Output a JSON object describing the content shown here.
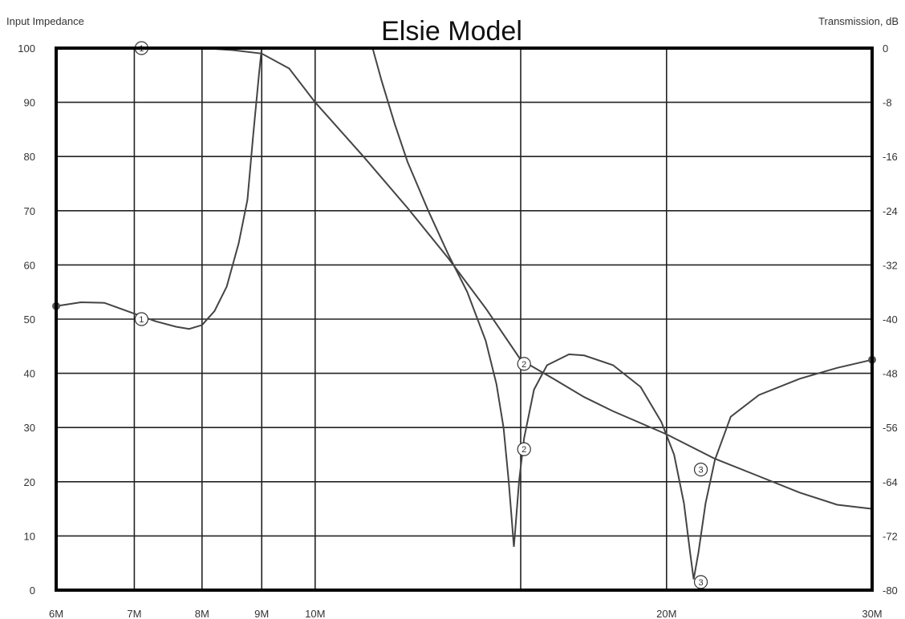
{
  "chart_data": {
    "type": "line",
    "title": "Elsie Model",
    "ylabel_left": "Input Impedance",
    "ylabel_right": "Transmission, dB",
    "x_scale": "log",
    "x_unit": "Hz",
    "xlim": [
      6000000,
      30000000
    ],
    "ylim_left": [
      0,
      100
    ],
    "ylim_right": [
      -80,
      0
    ],
    "grid": true,
    "x_ticks": [
      {
        "value": 6000000,
        "label": "6M"
      },
      {
        "value": 7000000,
        "label": "7M"
      },
      {
        "value": 8000000,
        "label": "8M"
      },
      {
        "value": 9000000,
        "label": "9M"
      },
      {
        "value": 10000000,
        "label": "10M"
      },
      {
        "value": 20000000,
        "label": "20M"
      },
      {
        "value": 30000000,
        "label": "30M"
      }
    ],
    "x_gridlines": [
      7000000,
      8000000,
      9000000,
      10000000,
      15000000,
      20000000
    ],
    "y_left_ticks": [
      "0",
      "10",
      "20",
      "30",
      "40",
      "50",
      "60",
      "70",
      "80",
      "90",
      "100"
    ],
    "y_right_ticks": [
      "-80",
      "-72",
      "-64",
      "-56",
      "-48",
      "-40",
      "-32",
      "-24",
      "-16",
      "-8",
      "0"
    ],
    "series": [
      {
        "axis": "left",
        "points": [
          [
            6000000,
            52.4
          ],
          [
            6300000,
            53.1
          ],
          [
            6600000,
            53.0
          ],
          [
            7000000,
            51.0
          ],
          [
            7300000,
            49.6
          ],
          [
            7600000,
            48.6
          ],
          [
            7800000,
            48.2
          ],
          [
            8000000,
            48.9
          ],
          [
            8200000,
            51.5
          ],
          [
            8400000,
            56.0
          ],
          [
            8600000,
            64.0
          ],
          [
            8750000,
            72.0
          ],
          [
            8850000,
            84.0
          ],
          [
            8950000,
            95.0
          ],
          [
            9000000,
            100.0
          ]
        ]
      },
      {
        "axis": "left",
        "points": [
          [
            11200000,
            100.0
          ],
          [
            11400000,
            94.0
          ],
          [
            11700000,
            86.0
          ],
          [
            12000000,
            79.0
          ],
          [
            12500000,
            70.0
          ],
          [
            13000000,
            62.0
          ],
          [
            13500000,
            55.0
          ],
          [
            14000000,
            46.0
          ],
          [
            14300000,
            38.0
          ],
          [
            14500000,
            30.0
          ],
          [
            14650000,
            20.0
          ],
          [
            14750000,
            12.0
          ],
          [
            14800000,
            8.0
          ],
          [
            14850000,
            12.0
          ],
          [
            14950000,
            20.0
          ],
          [
            15100000,
            28.0
          ],
          [
            15400000,
            37.0
          ],
          [
            15800000,
            41.5
          ],
          [
            16500000,
            43.5
          ],
          [
            17000000,
            43.3
          ],
          [
            18000000,
            41.5
          ],
          [
            19000000,
            37.5
          ],
          [
            19800000,
            31.0
          ],
          [
            20300000,
            25.0
          ],
          [
            20700000,
            16.0
          ],
          [
            20950000,
            7.0
          ],
          [
            21100000,
            2.0
          ],
          [
            21300000,
            7.0
          ],
          [
            21600000,
            16.0
          ],
          [
            22000000,
            24.0
          ],
          [
            22700000,
            32.0
          ],
          [
            24000000,
            36.0
          ],
          [
            26000000,
            39.0
          ],
          [
            28000000,
            41.0
          ],
          [
            30000000,
            42.5
          ]
        ]
      },
      {
        "axis": "right",
        "points": [
          [
            7000000,
            0.0
          ],
          [
            7500000,
            0.0
          ],
          [
            8000000,
            0.0
          ],
          [
            8500000,
            -0.3
          ],
          [
            9000000,
            -0.8
          ],
          [
            9500000,
            -3.0
          ],
          [
            10000000,
            -8.0
          ],
          [
            11000000,
            -16.0
          ],
          [
            12000000,
            -23.6
          ],
          [
            13000000,
            -31.0
          ],
          [
            14000000,
            -38.4
          ],
          [
            15000000,
            -46.0
          ],
          [
            16000000,
            -48.8
          ],
          [
            17000000,
            -51.5
          ],
          [
            18000000,
            -53.6
          ],
          [
            20000000,
            -57.0
          ],
          [
            22000000,
            -60.6
          ],
          [
            24000000,
            -63.2
          ],
          [
            26000000,
            -65.6
          ],
          [
            28000000,
            -67.4
          ],
          [
            30000000,
            -68.0
          ]
        ]
      }
    ],
    "markers": [
      {
        "label": "1",
        "axis": "left",
        "x": 7100000,
        "y": 100
      },
      {
        "label": "1",
        "axis": "left",
        "x": 7100000,
        "y": 50
      },
      {
        "label": "2",
        "axis": "right",
        "x": 15100000,
        "y": -46.6
      },
      {
        "label": "2",
        "axis": "left",
        "x": 15100000,
        "y": 26
      },
      {
        "label": "3",
        "axis": "right",
        "x": 21400000,
        "y": -62.2
      },
      {
        "label": "3",
        "axis": "left",
        "x": 21400000,
        "y": 1.5
      }
    ],
    "end_dots": [
      {
        "axis": "left",
        "x": 6000000,
        "y": 52.4
      },
      {
        "axis": "left",
        "x": 30000000,
        "y": 42.5
      }
    ]
  }
}
